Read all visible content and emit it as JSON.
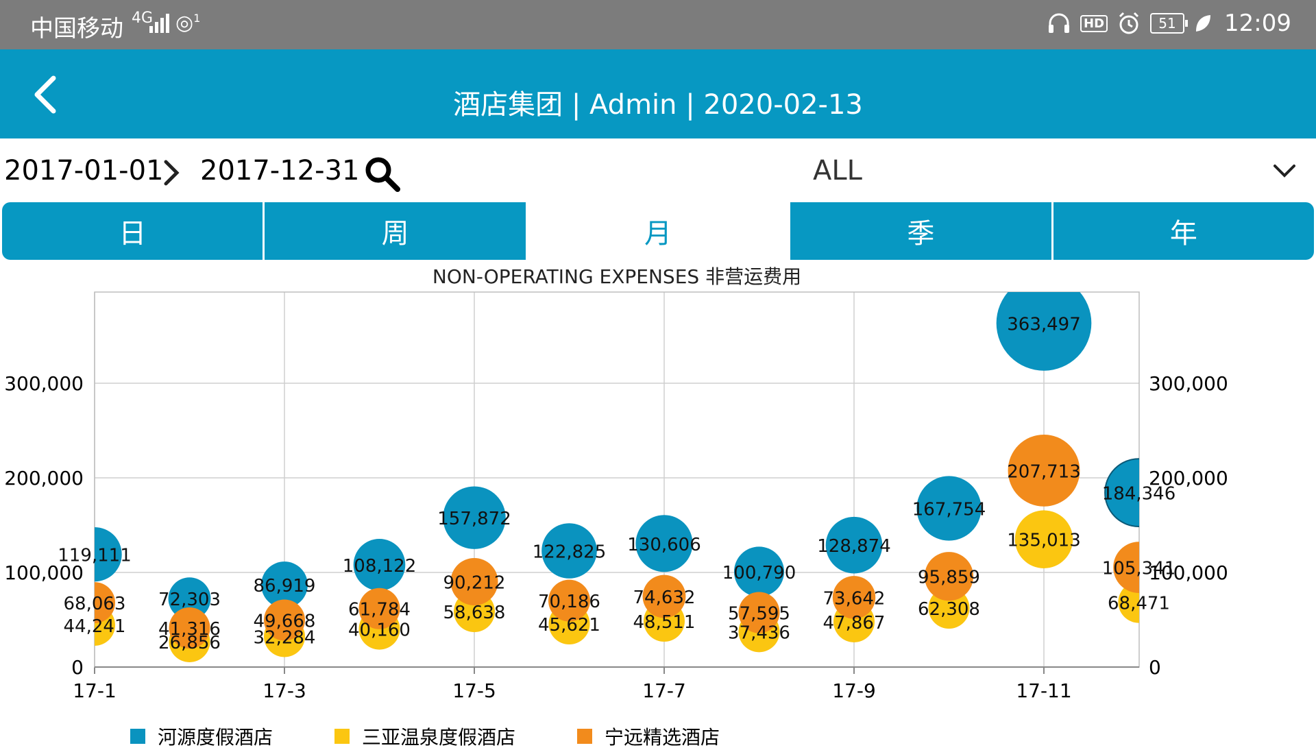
{
  "status_bar": {
    "carrier": "中国移动",
    "network": "4G",
    "nfc_badge": "1",
    "battery": "51",
    "hd": "HD",
    "time": "12:09"
  },
  "app_bar": {
    "title": "酒店集团 | Admin | 2020-02-13",
    "back_icon": "chevron-left-icon"
  },
  "filter": {
    "start_date": "2017-01-01",
    "end_date": "2017-12-31",
    "hotel_select": "ALL"
  },
  "tabs": [
    {
      "label": "日",
      "active": false
    },
    {
      "label": "周",
      "active": false
    },
    {
      "label": "月",
      "active": true
    },
    {
      "label": "季",
      "active": false
    },
    {
      "label": "年",
      "active": false
    }
  ],
  "colors": {
    "accent": "#0798c2",
    "series_1": "#0a93bf",
    "series_2": "#fbc611",
    "series_3": "#f28b1c"
  },
  "chart_data": {
    "type": "bubble",
    "title": "NON-OPERATING EXPENSES 非营运费用",
    "x_tick_labels": [
      "17-1",
      "17-3",
      "17-5",
      "17-7",
      "17-9",
      "17-11"
    ],
    "categories": [
      "17-1",
      "17-2",
      "17-3",
      "17-4",
      "17-5",
      "17-6",
      "17-7",
      "17-8",
      "17-9",
      "17-10",
      "17-11",
      "17-12"
    ],
    "y_ticks": [
      0,
      100000,
      200000,
      300000
    ],
    "y_tick_labels": [
      "0",
      "100,000",
      "200,000",
      "300,000"
    ],
    "ylim": [
      0,
      400000
    ],
    "grid": true,
    "legend_position": "bottom-left",
    "series": [
      {
        "name": "河源度假酒店",
        "color": "#0a93bf",
        "values": [
          119111,
          72303,
          86919,
          108122,
          157872,
          122825,
          130606,
          100790,
          128874,
          167754,
          363497,
          184346
        ],
        "labels": [
          "119,111",
          "72,303",
          "86,919",
          "108,122",
          "157,872",
          "122,825",
          "130,606",
          "100,790",
          "128,874",
          "167,754",
          "363,497",
          "184,346"
        ]
      },
      {
        "name": "三亚温泉度假酒店",
        "color": "#fbc611",
        "values": [
          44241,
          26856,
          32284,
          40160,
          58638,
          45621,
          48511,
          37436,
          47867,
          62308,
          135013,
          68471
        ],
        "labels": [
          "44,241",
          "26,856",
          "32,284",
          "40,160",
          "58,638",
          "45,621",
          "48,511",
          "37,436",
          "47,867",
          "62,308",
          "135,013",
          "68,471"
        ]
      },
      {
        "name": "宁远精选酒店",
        "color": "#f28b1c",
        "values": [
          68063,
          41316,
          49668,
          61784,
          90212,
          70186,
          74632,
          57595,
          73642,
          95859,
          207713,
          105341
        ],
        "labels": [
          "68,063",
          "41,316",
          "49,668",
          "61,784",
          "90,212",
          "70,186",
          "74,632",
          "57,595",
          "73,642",
          "95,859",
          "207,713",
          "105,341"
        ]
      }
    ]
  }
}
